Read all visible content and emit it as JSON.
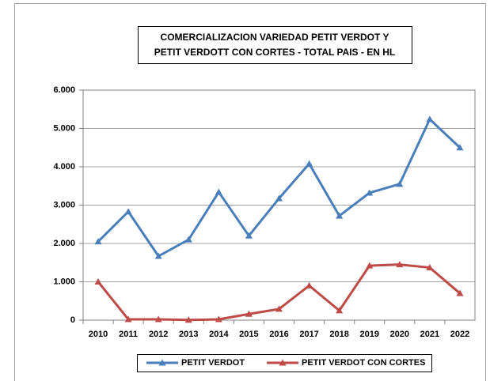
{
  "chart_data": {
    "type": "line",
    "title": [
      "COMERCIALIZACION VARIEDAD PETIT VERDOT  Y",
      "PETIT VERDOTT CON CORTES - TOTAL PAIS - EN HL"
    ],
    "categories": [
      "2010",
      "2011",
      "2012",
      "2013",
      "2014",
      "2015",
      "2016",
      "2017",
      "2018",
      "2019",
      "2020",
      "2021",
      "2022"
    ],
    "series": [
      {
        "name": "PETIT VERDOT",
        "color": "#4a7ebb",
        "values": [
          2050,
          2830,
          1670,
          2100,
          3340,
          2200,
          3175,
          4080,
          2720,
          3320,
          3550,
          5240,
          4500
        ]
      },
      {
        "name": "PETIT VERDOT CON CORTES",
        "color": "#be4b48",
        "values": [
          1000,
          20,
          20,
          5,
          20,
          160,
          290,
          900,
          250,
          1420,
          1450,
          1370,
          700
        ]
      }
    ],
    "ylim": [
      0,
      6000
    ],
    "yticks": [
      0,
      {
        "value": 1000,
        "label": "1.000"
      },
      {
        "value": 2000,
        "label": "2.000"
      },
      {
        "value": 3000,
        "label": "3.000"
      },
      {
        "value": 4000,
        "label": "4.000"
      },
      {
        "value": 5000,
        "label": "5.000"
      },
      {
        "value": 6000,
        "label": "6.000"
      }
    ],
    "grid": true
  }
}
